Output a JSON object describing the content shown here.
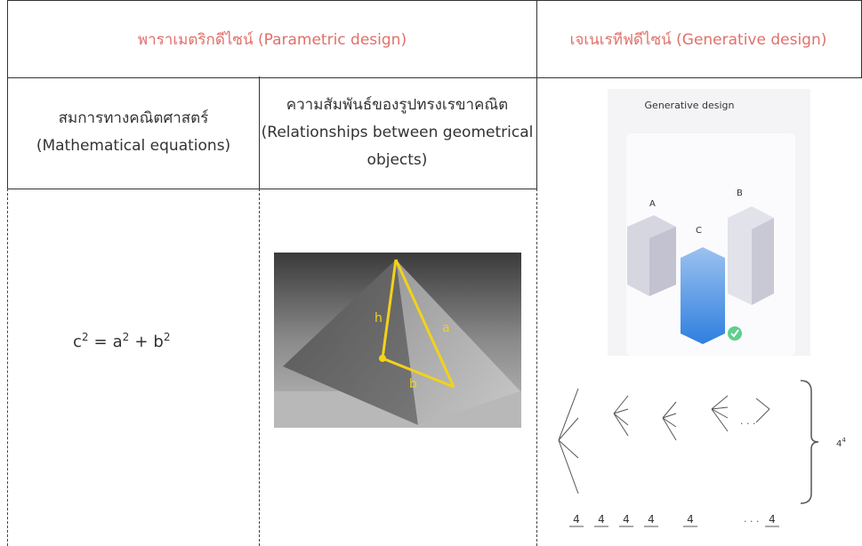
{
  "header": {
    "parametric": "พาราเมตริกดีไซน์ (Parametric design)",
    "generative": "เจเนเรทีฟดีไซน์ (Generative design)"
  },
  "subheaders": [
    {
      "thai": "สมการทางคณิตศาสตร์",
      "english": "(Mathematical equations)"
    },
    {
      "thai": "ความสัมพันธ์ของรูปทรงเรขาคณิต",
      "english": "(Relationships between geometrical objects)"
    }
  ],
  "equation": [
    {
      "base": "c",
      "sup": "2"
    },
    {
      "op": "="
    },
    {
      "base": "a",
      "sup": "2"
    },
    {
      "op": "+"
    },
    {
      "base": "b",
      "sup": "2"
    }
  ],
  "pyramid": {
    "labels": [
      "h",
      "a",
      "b"
    ]
  },
  "generative": {
    "title": "Generative design",
    "labels": [
      "A",
      "B",
      "C"
    ]
  },
  "tree": {
    "digits": [
      "4",
      "4",
      "4",
      "4",
      "4",
      "4"
    ],
    "ellipsis": "· · ·",
    "total": {
      "base": "4",
      "exp": "4"
    }
  }
}
